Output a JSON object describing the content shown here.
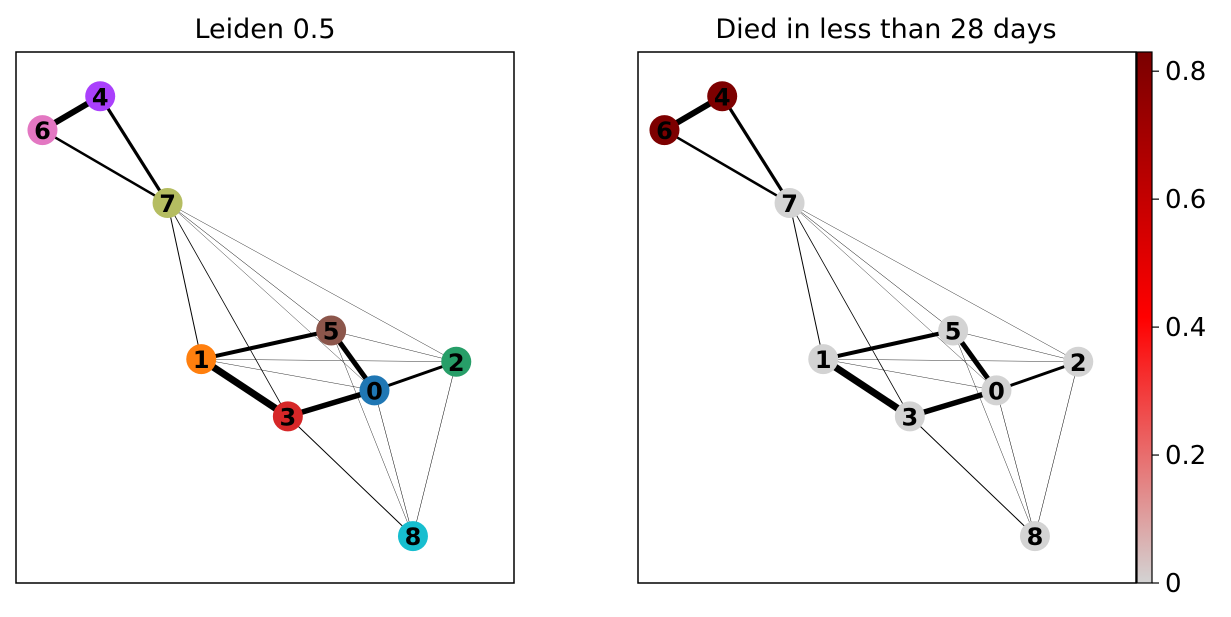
{
  "panels": [
    {
      "title": "Leiden 0.5"
    },
    {
      "title": "Died in less than 28 days"
    }
  ],
  "nodes": [
    {
      "label": "0",
      "x": 7.4,
      "y": 3.7,
      "color": "#1f77b4",
      "value": 0.0
    },
    {
      "label": "1",
      "x": 3.8,
      "y": 4.3,
      "color": "#ff7f0e",
      "value": 0.0
    },
    {
      "label": "2",
      "x": 9.1,
      "y": 4.25,
      "color": "#279e68",
      "value": 0.0
    },
    {
      "label": "3",
      "x": 5.6,
      "y": 3.2,
      "color": "#d62728",
      "value": 0.0
    },
    {
      "label": "4",
      "x": 1.7,
      "y": 9.35,
      "color": "#aa40fc",
      "value": 0.82
    },
    {
      "label": "5",
      "x": 6.5,
      "y": 4.85,
      "color": "#8c564b",
      "value": 0.0
    },
    {
      "label": "6",
      "x": 0.5,
      "y": 8.7,
      "color": "#e377c2",
      "value": 0.82
    },
    {
      "label": "7",
      "x": 3.1,
      "y": 7.3,
      "color": "#b5bd61",
      "value": 0.0
    },
    {
      "label": "8",
      "x": 8.2,
      "y": 0.9,
      "color": "#17becf",
      "value": 0.0
    }
  ],
  "edges": [
    {
      "source": "6",
      "target": "4",
      "weight": 6.0
    },
    {
      "source": "4",
      "target": "7",
      "weight": 3.2
    },
    {
      "source": "6",
      "target": "7",
      "weight": 2.5
    },
    {
      "source": "7",
      "target": "1",
      "weight": 1.0
    },
    {
      "source": "7",
      "target": "3",
      "weight": 0.8
    },
    {
      "source": "7",
      "target": "5",
      "weight": 0.5
    },
    {
      "source": "7",
      "target": "0",
      "weight": 0.4
    },
    {
      "source": "7",
      "target": "2",
      "weight": 0.4
    },
    {
      "source": "1",
      "target": "5",
      "weight": 4.0
    },
    {
      "source": "1",
      "target": "3",
      "weight": 7.0
    },
    {
      "source": "1",
      "target": "0",
      "weight": 0.4
    },
    {
      "source": "1",
      "target": "2",
      "weight": 0.4
    },
    {
      "source": "5",
      "target": "0",
      "weight": 5.0
    },
    {
      "source": "5",
      "target": "2",
      "weight": 0.4
    },
    {
      "source": "5",
      "target": "8",
      "weight": 0.4
    },
    {
      "source": "3",
      "target": "0",
      "weight": 5.5
    },
    {
      "source": "0",
      "target": "2",
      "weight": 3.0
    },
    {
      "source": "0",
      "target": "8",
      "weight": 0.5
    },
    {
      "source": "3",
      "target": "8",
      "weight": 1.0
    },
    {
      "source": "2",
      "target": "8",
      "weight": 0.5
    }
  ],
  "colorbar": {
    "min": 0,
    "max": 0.83,
    "ticks": [
      {
        "value": 0,
        "label": "0"
      },
      {
        "value": 0.2,
        "label": "0.2"
      },
      {
        "value": 0.4,
        "label": "0.4"
      },
      {
        "value": 0.6,
        "label": "0.6"
      },
      {
        "value": 0.8,
        "label": "0.8"
      }
    ],
    "colors": [
      "#d3d3d3",
      "#ff0000",
      "#7a0000"
    ]
  }
}
